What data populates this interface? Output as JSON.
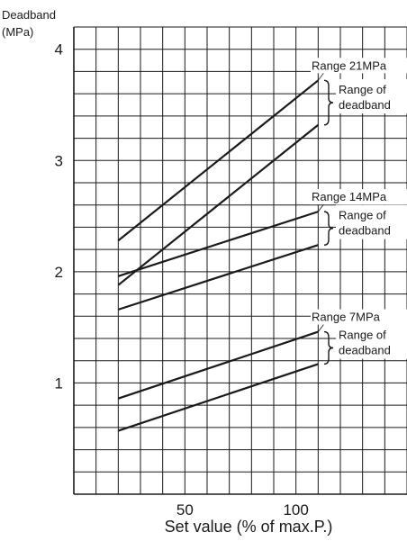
{
  "chart_data": {
    "type": "line",
    "ylabel": [
      "Deadband",
      "(MPa)"
    ],
    "xlabel": "Set value (% of max.P.)",
    "x_range": [
      0,
      150
    ],
    "y_range": [
      0,
      4.2
    ],
    "x_ticks": [
      {
        "value": 50,
        "label": "50"
      },
      {
        "value": 100,
        "label": "100"
      }
    ],
    "y_ticks": [
      {
        "value": 1,
        "label": "1"
      },
      {
        "value": 2,
        "label": "2"
      },
      {
        "value": 3,
        "label": "3"
      },
      {
        "value": 4,
        "label": "4"
      }
    ],
    "grid": true,
    "grid_x_step": 10,
    "grid_y_step": 0.2,
    "series": [
      {
        "range": "21MPa",
        "x": [
          20,
          110
        ],
        "y": [
          2.28,
          3.72
        ]
      },
      {
        "range": "21MPa",
        "x": [
          20,
          110
        ],
        "y": [
          1.88,
          3.32
        ]
      },
      {
        "range": "14MPa",
        "x": [
          20,
          110
        ],
        "y": [
          1.96,
          2.54
        ]
      },
      {
        "range": "14MPa",
        "x": [
          20,
          110
        ],
        "y": [
          1.66,
          2.24
        ]
      },
      {
        "range": "7MPa",
        "x": [
          20,
          110
        ],
        "y": [
          0.86,
          1.46
        ]
      },
      {
        "range": "7MPa",
        "x": [
          20,
          110
        ],
        "y": [
          0.57,
          1.17
        ]
      }
    ],
    "annotations": [
      {
        "title": "Range 21MPa",
        "note": [
          "Range of",
          "deadband"
        ],
        "y_top": 3.72,
        "y_bottom": 3.32
      },
      {
        "title": "Range 14MPa",
        "note": [
          "Range of",
          "deadband"
        ],
        "y_top": 2.54,
        "y_bottom": 2.24
      },
      {
        "title": "Range 7MPa",
        "note": [
          "Range of",
          "deadband"
        ],
        "y_top": 1.46,
        "y_bottom": 1.17
      }
    ]
  }
}
